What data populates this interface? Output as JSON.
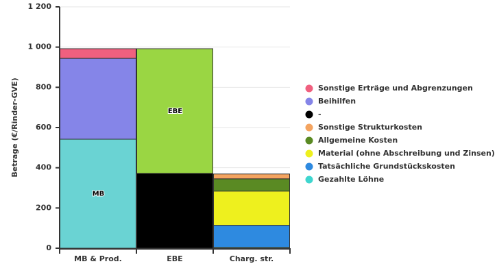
{
  "chart_data": {
    "type": "stacked_bar",
    "y_label": "Betrage (€/Rinder-GVE)",
    "categories": [
      "MB & Prod.",
      "EBE",
      "Charg. str."
    ],
    "ylim": [
      0,
      1200
    ],
    "yticks": [
      0,
      200,
      400,
      600,
      800,
      {
        "value": 1000,
        "label": "1 000"
      },
      {
        "value": 1200,
        "label": "1 200"
      }
    ],
    "grid": true,
    "legend": "right",
    "series": [
      {
        "name": "Gezahlte Löhne",
        "color": "#6ad3d3",
        "legend_color": "#3fd6cf",
        "values": [
          542,
          null,
          5
        ],
        "segment_labels": [
          "MB",
          null,
          null
        ]
      },
      {
        "name": "Tatsächliche Grundstückskosten",
        "color": "#2e8ae0",
        "values": [
          null,
          null,
          109
        ]
      },
      {
        "name": "Material (ohne Abschreibung und Zinsen)",
        "color": "#eef01e",
        "values": [
          null,
          null,
          170
        ]
      },
      {
        "name": "Allgemeine Kosten",
        "color": "#5a8a23",
        "values": [
          null,
          null,
          61
        ]
      },
      {
        "name": "Sonstige Strukturkosten",
        "color": "#f4a460",
        "values": [
          null,
          null,
          24
        ]
      },
      {
        "name": "-",
        "color": "#000000",
        "values": [
          null,
          372,
          null
        ]
      },
      {
        "name": "Beihilfen",
        "color": "#8585e8",
        "values": [
          402,
          null,
          null
        ]
      },
      {
        "name": "Sonstige Erträge und Abgrenzungen",
        "color": "#f0607f",
        "values": [
          48,
          null,
          null
        ]
      },
      {
        "name": "EBE",
        "color": "#9ad643",
        "in_legend": false,
        "values": [
          null,
          620,
          null
        ],
        "segment_labels": [
          null,
          "EBE",
          null
        ]
      }
    ]
  }
}
